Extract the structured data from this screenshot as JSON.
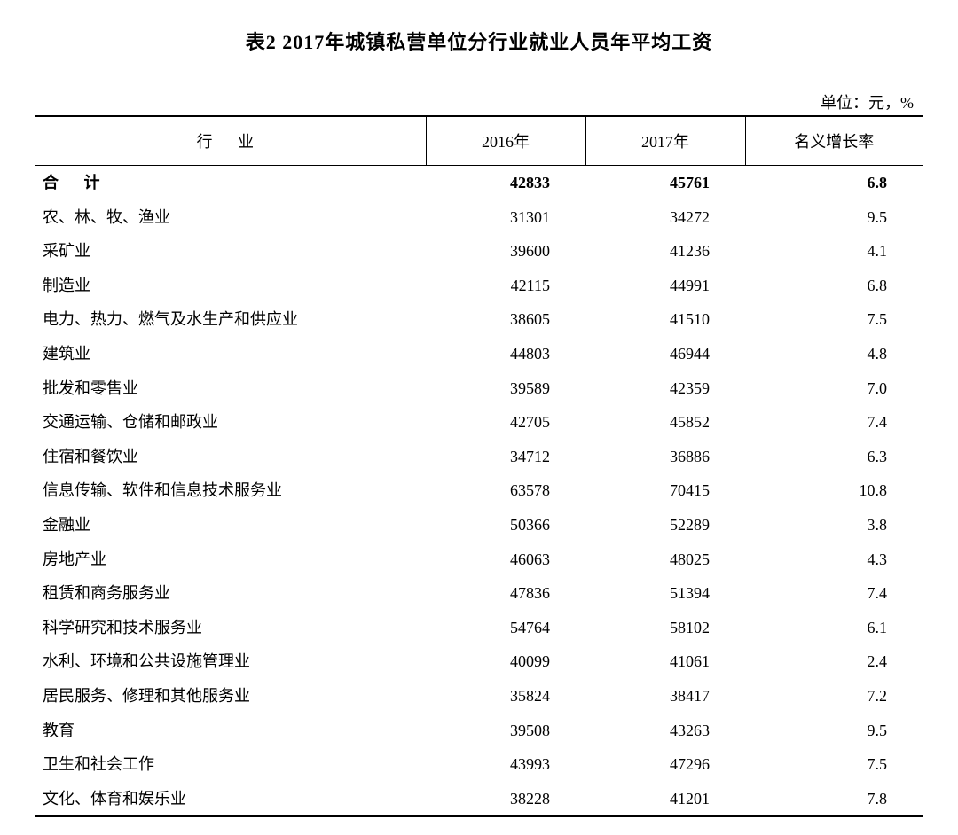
{
  "title": "表2  2017年城镇私营单位分行业就业人员年平均工资",
  "unit": "单位：元，%",
  "columns": {
    "industry": "行 业",
    "y2016": "2016年",
    "y2017": "2017年",
    "growth": "名义增长率"
  },
  "total": {
    "label": "合 计",
    "y2016": "42833",
    "y2017": "45761",
    "growth": "6.8"
  },
  "rows": [
    {
      "label": "农、林、牧、渔业",
      "y2016": "31301",
      "y2017": "34272",
      "growth": "9.5"
    },
    {
      "label": "采矿业",
      "y2016": "39600",
      "y2017": "41236",
      "growth": "4.1"
    },
    {
      "label": "制造业",
      "y2016": "42115",
      "y2017": "44991",
      "growth": "6.8"
    },
    {
      "label": "电力、热力、燃气及水生产和供应业",
      "y2016": "38605",
      "y2017": "41510",
      "growth": "7.5"
    },
    {
      "label": "建筑业",
      "y2016": "44803",
      "y2017": "46944",
      "growth": "4.8"
    },
    {
      "label": "批发和零售业",
      "y2016": "39589",
      "y2017": "42359",
      "growth": "7.0"
    },
    {
      "label": "交通运输、仓储和邮政业",
      "y2016": "42705",
      "y2017": "45852",
      "growth": "7.4"
    },
    {
      "label": "住宿和餐饮业",
      "y2016": "34712",
      "y2017": "36886",
      "growth": "6.3"
    },
    {
      "label": "信息传输、软件和信息技术服务业",
      "y2016": "63578",
      "y2017": "70415",
      "growth": "10.8"
    },
    {
      "label": "金融业",
      "y2016": "50366",
      "y2017": "52289",
      "growth": "3.8"
    },
    {
      "label": "房地产业",
      "y2016": "46063",
      "y2017": "48025",
      "growth": "4.3"
    },
    {
      "label": "租赁和商务服务业",
      "y2016": "47836",
      "y2017": "51394",
      "growth": "7.4"
    },
    {
      "label": "科学研究和技术服务业",
      "y2016": "54764",
      "y2017": "58102",
      "growth": "6.1"
    },
    {
      "label": "水利、环境和公共设施管理业",
      "y2016": "40099",
      "y2017": "41061",
      "growth": "2.4"
    },
    {
      "label": "居民服务、修理和其他服务业",
      "y2016": "35824",
      "y2017": "38417",
      "growth": "7.2"
    },
    {
      "label": "教育",
      "y2016": "39508",
      "y2017": "43263",
      "growth": "9.5"
    },
    {
      "label": "卫生和社会工作",
      "y2016": "43993",
      "y2017": "47296",
      "growth": "7.5"
    },
    {
      "label": "文化、体育和娱乐业",
      "y2016": "38228",
      "y2017": "41201",
      "growth": "7.8"
    }
  ],
  "style": {
    "type": "table",
    "background_color": "#ffffff",
    "text_color": "#000000",
    "border_color": "#000000",
    "title_fontsize": 22,
    "body_fontsize": 18,
    "col_widths_pct": [
      44,
      18,
      18,
      20
    ],
    "row_line_height": 1.7
  }
}
